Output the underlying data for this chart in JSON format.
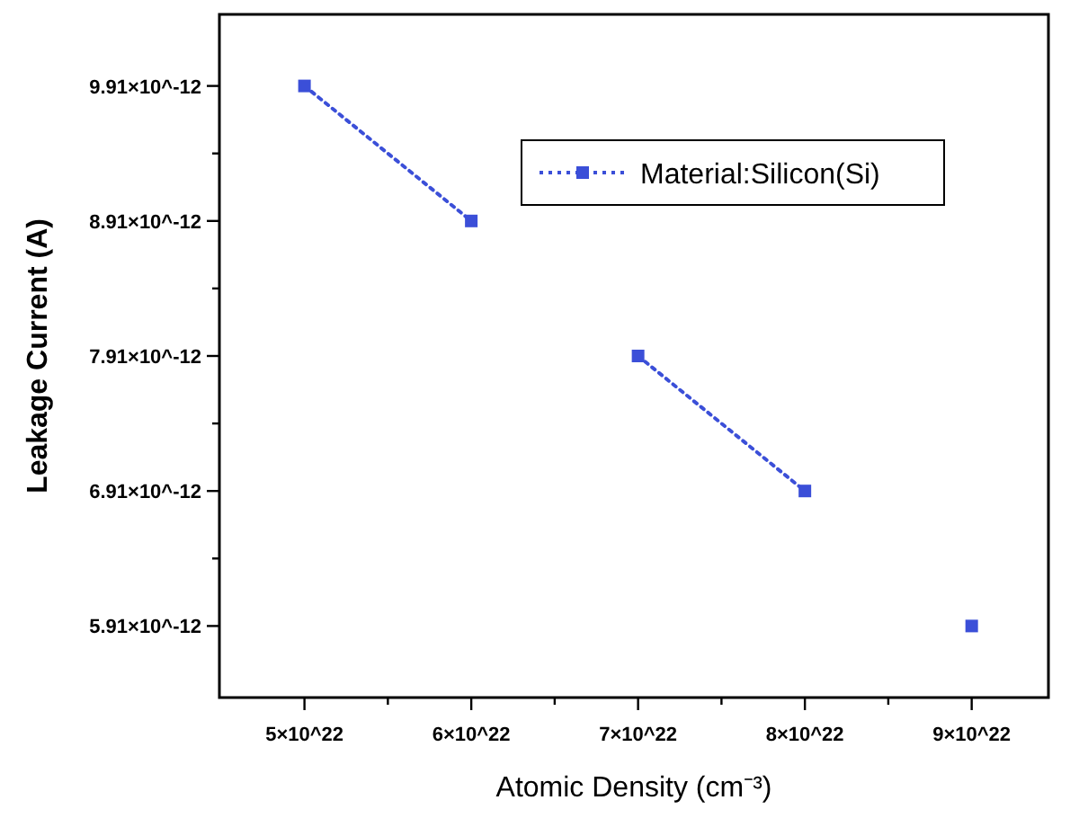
{
  "chart_data": {
    "type": "line",
    "xlabel": "Atomic Density (cm⁻³)",
    "ylabel": "Leakage Current (A)",
    "xlim": [
      4.49e+22,
      9.46e+22
    ],
    "ylim": [
      5.38e-12,
      1.044e-11
    ],
    "xticks": [
      {
        "value": 5e+22,
        "label": "5×10^22"
      },
      {
        "value": 5.5e+22,
        "label": null
      },
      {
        "value": 6e+22,
        "label": "6×10^22"
      },
      {
        "value": 6.5e+22,
        "label": null
      },
      {
        "value": 7e+22,
        "label": "7×10^22"
      },
      {
        "value": 7.5e+22,
        "label": null
      },
      {
        "value": 8e+22,
        "label": "8×10^22"
      },
      {
        "value": 8.5e+22,
        "label": null
      },
      {
        "value": 9e+22,
        "label": "9×10^22"
      }
    ],
    "yticks": [
      {
        "value": 5.91e-12,
        "label": "5.91×10^-12"
      },
      {
        "value": 6.41e-12,
        "label": null
      },
      {
        "value": 6.91e-12,
        "label": "6.91×10^-12"
      },
      {
        "value": 7.41e-12,
        "label": null
      },
      {
        "value": 7.91e-12,
        "label": "7.91×10^-12"
      },
      {
        "value": 8.41e-12,
        "label": null
      },
      {
        "value": 8.91e-12,
        "label": "8.91×10^-12"
      },
      {
        "value": 9.41e-12,
        "label": null
      },
      {
        "value": 9.91e-12,
        "label": "9.91×10^-12"
      }
    ],
    "marker": "square",
    "line_style": "dotted",
    "legend": "top right",
    "grid": false,
    "series": [
      {
        "name": "Material:Silicon(Si)",
        "color": "#3b4fd8",
        "x": [
          5e+22,
          6e+22,
          null,
          7e+22,
          8e+22,
          null,
          9e+22
        ],
        "values": [
          9.91e-12,
          8.91e-12,
          null,
          7.91e-12,
          6.91e-12,
          null,
          5.91e-12
        ]
      }
    ]
  }
}
